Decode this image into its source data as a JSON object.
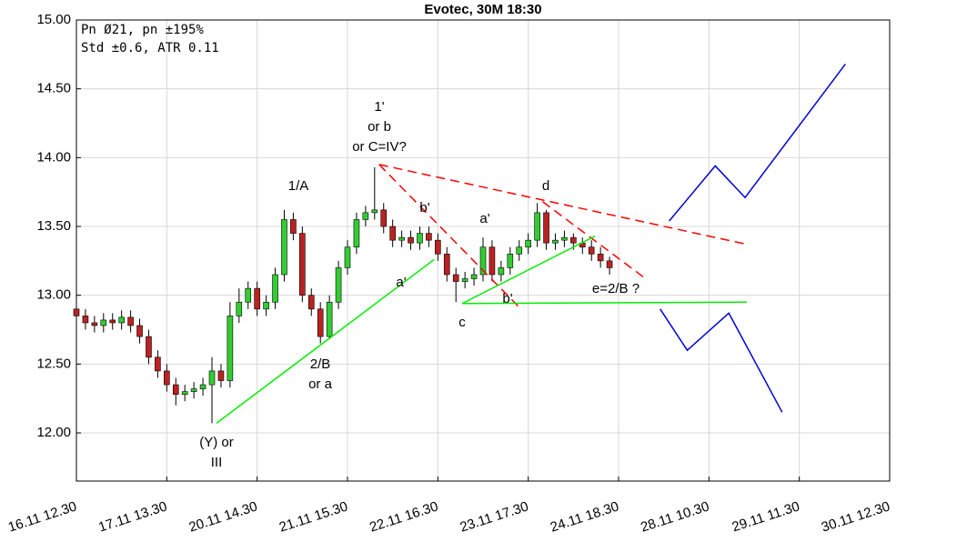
{
  "chart_data": {
    "type": "candlestick",
    "title": "Evotec, 30M 18:30",
    "info": [
      "Pn  Ø21, pn ±195%",
      "Std ±0.6, ATR 0.11"
    ],
    "x": [
      0,
      0.1,
      0.2,
      0.3,
      0.4,
      0.5,
      0.6,
      0.7,
      0.8,
      0.9,
      1,
      1.1,
      1.2,
      1.3,
      1.4,
      1.5,
      1.6,
      1.7,
      1.8,
      1.9,
      2,
      2.1,
      2.2,
      2.3,
      2.4,
      2.5,
      2.6,
      2.7,
      2.8,
      2.9,
      3,
      3.1,
      3.2,
      3.3,
      3.4,
      3.5,
      3.6,
      3.7,
      3.8,
      3.9,
      4,
      4.1,
      4.2,
      4.3,
      4.4,
      4.5,
      4.6,
      4.7,
      4.8,
      4.9,
      5,
      5.1,
      5.2,
      5.3,
      5.4,
      5.5,
      5.6,
      5.7,
      5.8,
      5.9
    ],
    "open": [
      12.9,
      12.85,
      12.8,
      12.78,
      12.82,
      12.8,
      12.84,
      12.78,
      12.7,
      12.55,
      12.45,
      12.35,
      12.28,
      12.3,
      12.32,
      12.35,
      12.45,
      12.38,
      12.85,
      12.95,
      13.05,
      12.9,
      12.95,
      13.15,
      13.55,
      13.45,
      13.0,
      12.9,
      12.7,
      12.95,
      13.2,
      13.35,
      13.55,
      13.6,
      13.62,
      13.5,
      13.4,
      13.42,
      13.38,
      13.45,
      13.4,
      13.3,
      13.15,
      13.1,
      13.12,
      13.15,
      13.35,
      13.15,
      13.2,
      13.3,
      13.35,
      13.4,
      13.6,
      13.38,
      13.4,
      13.42,
      13.38,
      13.35,
      13.3,
      13.25
    ],
    "high": [
      12.95,
      12.9,
      12.85,
      12.87,
      12.87,
      12.89,
      12.89,
      12.83,
      12.75,
      12.6,
      12.5,
      12.4,
      12.35,
      12.37,
      12.4,
      12.55,
      12.5,
      12.95,
      13.05,
      13.1,
      13.1,
      13.0,
      13.2,
      13.62,
      13.6,
      13.5,
      13.05,
      12.95,
      13.0,
      13.25,
      13.4,
      13.6,
      13.65,
      13.93,
      13.67,
      13.55,
      13.47,
      13.47,
      13.5,
      13.5,
      13.45,
      13.35,
      13.2,
      13.17,
      13.2,
      13.42,
      13.4,
      13.25,
      13.35,
      13.4,
      13.45,
      13.67,
      13.62,
      13.45,
      13.47,
      13.45,
      13.42,
      13.4,
      13.35,
      13.28
    ],
    "low": [
      12.8,
      12.75,
      12.73,
      12.73,
      12.75,
      12.75,
      12.73,
      12.65,
      12.5,
      12.4,
      12.3,
      12.2,
      12.23,
      12.25,
      12.27,
      12.07,
      12.33,
      12.33,
      12.8,
      12.9,
      12.85,
      12.85,
      12.9,
      13.1,
      13.4,
      12.95,
      12.85,
      12.65,
      12.68,
      12.9,
      13.15,
      13.3,
      13.5,
      13.55,
      13.45,
      13.35,
      13.35,
      13.33,
      13.33,
      13.35,
      13.25,
      13.1,
      12.95,
      13.05,
      13.07,
      13.1,
      13.1,
      13.1,
      13.15,
      13.25,
      13.3,
      13.35,
      13.33,
      13.33,
      13.35,
      13.33,
      13.3,
      13.25,
      13.2,
      13.15
    ],
    "close": [
      12.85,
      12.8,
      12.78,
      12.82,
      12.8,
      12.84,
      12.78,
      12.7,
      12.55,
      12.45,
      12.35,
      12.28,
      12.3,
      12.32,
      12.35,
      12.45,
      12.38,
      12.85,
      12.95,
      13.05,
      12.9,
      12.95,
      13.15,
      13.55,
      13.45,
      13.0,
      12.9,
      12.7,
      12.95,
      13.2,
      13.35,
      13.55,
      13.6,
      13.62,
      13.5,
      13.4,
      13.42,
      13.38,
      13.45,
      13.4,
      13.3,
      13.15,
      13.1,
      13.12,
      13.15,
      13.35,
      13.15,
      13.2,
      13.3,
      13.35,
      13.4,
      13.6,
      13.38,
      13.4,
      13.42,
      13.38,
      13.35,
      13.3,
      13.25,
      13.2
    ],
    "up_color": "#33cc33",
    "down_color": "#bb2222",
    "xlim": [
      0,
      9
    ],
    "ylim": [
      11.65,
      15
    ],
    "xticks": [
      {
        "value": 0,
        "label": "16.11 12.30"
      },
      {
        "value": 1,
        "label": "17.11 13.30"
      },
      {
        "value": 2,
        "label": "20.11 14.30"
      },
      {
        "value": 3,
        "label": "21.11 15.30"
      },
      {
        "value": 4,
        "label": "22.11 16.30"
      },
      {
        "value": 5,
        "label": "23.11 17.30"
      },
      {
        "value": 6,
        "label": "24.11 18.30"
      },
      {
        "value": 7,
        "label": "28.11 10.30"
      },
      {
        "value": 8,
        "label": "29.11 11.30"
      },
      {
        "value": 9,
        "label": "30.11 12.30"
      }
    ],
    "yticks": [
      {
        "value": 12,
        "label": "12.00"
      },
      {
        "value": 12.5,
        "label": "12.50"
      },
      {
        "value": 13,
        "label": "13.00"
      },
      {
        "value": 13.5,
        "label": "13.50"
      },
      {
        "value": 14,
        "label": "14.00"
      },
      {
        "value": 14.5,
        "label": "14.50"
      },
      {
        "value": 15,
        "label": "15.00"
      }
    ],
    "grid": true,
    "lines": [
      {
        "color": "#ff0000",
        "dash": true,
        "x": [
          3.35,
          7.42
        ],
        "y": [
          13.95,
          13.37
        ]
      },
      {
        "color": "#ff0000",
        "dash": true,
        "x": [
          3.35,
          4.89
        ],
        "y": [
          13.95,
          12.92
        ]
      },
      {
        "color": "#ff0000",
        "dash": true,
        "x": [
          5.16,
          6.28
        ],
        "y": [
          13.68,
          13.13
        ]
      },
      {
        "color": "#00ee00",
        "dash": false,
        "x": [
          1.55,
          3.96
        ],
        "y": [
          12.07,
          13.26
        ]
      },
      {
        "color": "#00ee00",
        "dash": false,
        "x": [
          4.27,
          7.42
        ],
        "y": [
          12.94,
          12.95
        ]
      },
      {
        "color": "#00ee00",
        "dash": false,
        "x": [
          4.27,
          5.74
        ],
        "y": [
          12.94,
          13.43
        ]
      },
      {
        "color": "#0000dd",
        "dash": false,
        "x": [
          6.56,
          7.07,
          7.4,
          8.51
        ],
        "y": [
          13.54,
          13.94,
          13.71,
          14.68
        ]
      },
      {
        "color": "#0000dd",
        "dash": false,
        "x": [
          6.46,
          6.76,
          7.22,
          7.81
        ],
        "y": [
          12.9,
          12.6,
          12.87,
          12.15
        ]
      }
    ],
    "annotations": [
      [
        "1/A"
      ],
      [
        "1'",
        "or b",
        "or C=IV?"
      ],
      [
        "b'"
      ],
      [
        "a'"
      ],
      [
        "d"
      ],
      [
        "a'"
      ],
      [
        "2/B",
        "or a"
      ],
      [
        "(Y) or",
        "III"
      ],
      [
        "c"
      ],
      [
        "b'"
      ],
      [
        "e=2/B ?"
      ]
    ]
  }
}
